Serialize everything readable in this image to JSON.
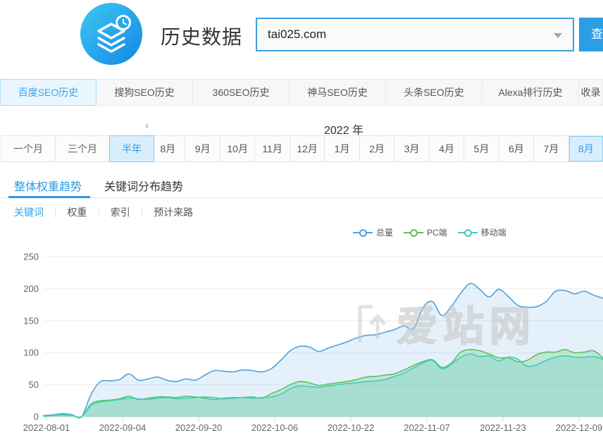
{
  "header": {
    "title": "历史数据",
    "search_value": "tai025.com",
    "search_button_label": "查",
    "accent_color": "#2a9fe5"
  },
  "tabs": {
    "active_index": 0,
    "items": [
      "百度SEO历史",
      "搜狗SEO历史",
      "360SEO历史",
      "神马SEO历史",
      "头条SEO历史",
      "Alexa排行历史",
      "收录"
    ]
  },
  "period": {
    "ranges": [
      "一个月",
      "三个月",
      "半年"
    ],
    "range_active_index": 2,
    "chevron": "‹",
    "year_label": "2022 年",
    "months": [
      "8月",
      "9月",
      "10月",
      "11月",
      "12月",
      "1月",
      "2月",
      "3月",
      "4月",
      "5月",
      "6月",
      "7月",
      "8月"
    ],
    "month_active_index": 12
  },
  "subtabs": {
    "active_index": 0,
    "items": [
      {
        "label": "整体权重趋势"
      },
      {
        "label": "关键词分布趋势"
      }
    ]
  },
  "filters": {
    "active_index": 0,
    "items": [
      "关键词",
      "权重",
      "索引",
      "预计来路"
    ]
  },
  "watermark_text": "爱站网",
  "chart_data": {
    "type": "line",
    "title": "",
    "xlabel": "",
    "ylabel": "",
    "ylim": [
      0,
      250
    ],
    "yticks": [
      0,
      50,
      100,
      150,
      200,
      250
    ],
    "grid": true,
    "legend_position": "top-right",
    "x_tick_labels": [
      "2022-08-01",
      "2022-09-04",
      "2022-09-20",
      "2022-10-06",
      "2022-10-22",
      "2022-11-07",
      "2022-11-23",
      "2022-12-09"
    ],
    "series": [
      {
        "name": "总量",
        "color": "#4fa3dc",
        "fill": "rgba(79,163,220,0.15)",
        "values": [
          2,
          3,
          5,
          3,
          0,
          35,
          55,
          56,
          58,
          67,
          57,
          59,
          62,
          57,
          55,
          59,
          57,
          65,
          72,
          71,
          70,
          73,
          72,
          70,
          75,
          88,
          103,
          110,
          109,
          102,
          107,
          112,
          117,
          123,
          127,
          128,
          132,
          136,
          142,
          137,
          170,
          180,
          158,
          172,
          193,
          208,
          199,
          187,
          199,
          188,
          174,
          171,
          172,
          180,
          196,
          197,
          192,
          196,
          190,
          185
        ]
      },
      {
        "name": "PC端",
        "color": "#5cc25c",
        "fill": "rgba(95,195,95,0.25)",
        "values": [
          1,
          2,
          3,
          2,
          0,
          20,
          25,
          26,
          28,
          32,
          27,
          29,
          31,
          31,
          30,
          32,
          31,
          29,
          27,
          29,
          30,
          30,
          31,
          29,
          36,
          42,
          50,
          55,
          53,
          49,
          51,
          53,
          55,
          58,
          62,
          63,
          65,
          67,
          73,
          80,
          86,
          89,
          77,
          84,
          101,
          105,
          103,
          98,
          92,
          92,
          86,
          88,
          97,
          101,
          101,
          105,
          100,
          101,
          103,
          92
        ]
      },
      {
        "name": "移动端",
        "color": "#3eccc3",
        "fill": "rgba(62,204,195,0.22)",
        "values": [
          1,
          2,
          4,
          2,
          0,
          18,
          23,
          25,
          27,
          29,
          28,
          27,
          29,
          30,
          28,
          29,
          30,
          31,
          30,
          28,
          29,
          30,
          29,
          30,
          31,
          35,
          44,
          48,
          47,
          46,
          48,
          50,
          52,
          53,
          55,
          56,
          58,
          63,
          68,
          76,
          84,
          88,
          75,
          82,
          93,
          98,
          94,
          95,
          87,
          93,
          90,
          79,
          81,
          88,
          93,
          95,
          93,
          93,
          94,
          90
        ]
      }
    ]
  }
}
